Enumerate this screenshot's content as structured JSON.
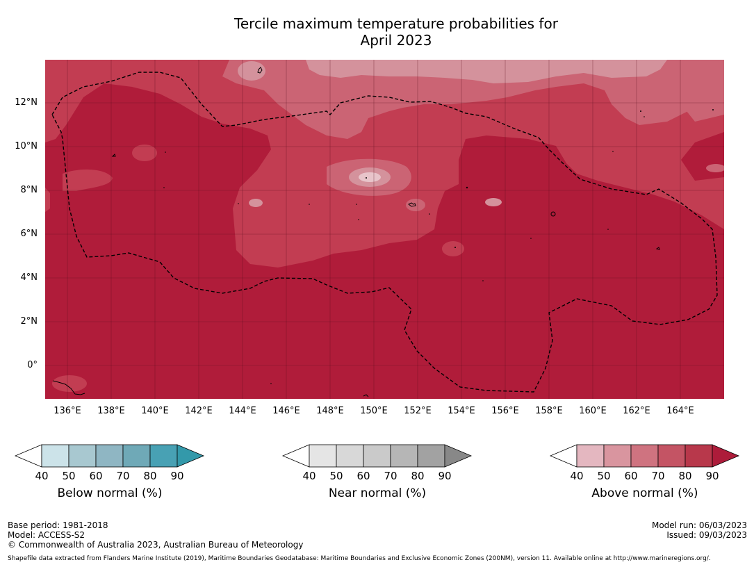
{
  "title_line1": "Tercile maximum temperature probabilities for",
  "title_line2": "April 2023",
  "lat_labels": [
    "12°N",
    "10°N",
    "8°N",
    "6°N",
    "4°N",
    "2°N",
    "0°"
  ],
  "lon_labels": [
    "136°E",
    "138°E",
    "140°E",
    "142°E",
    "144°E",
    "146°E",
    "148°E",
    "150°E",
    "152°E",
    "154°E",
    "156°E",
    "158°E",
    "160°E",
    "162°E",
    "164°E"
  ],
  "colorbars": [
    {
      "title": "Below normal (%)",
      "ticks": [
        "40",
        "50",
        "60",
        "70",
        "80",
        "90"
      ],
      "colors": [
        "#cce3e9",
        "#a8c8d0",
        "#8fb6c3",
        "#6fa9b7",
        "#48a1b4"
      ],
      "extend_color": "#3399aa"
    },
    {
      "title": "Near normal (%)",
      "ticks": [
        "40",
        "50",
        "60",
        "70",
        "80",
        "90"
      ],
      "colors": [
        "#e5e5e5",
        "#d8d8d8",
        "#cacaca",
        "#b6b6b6",
        "#a2a2a2"
      ],
      "extend_color": "#888888"
    },
    {
      "title": "Above normal (%)",
      "ticks": [
        "40",
        "50",
        "60",
        "70",
        "80",
        "90"
      ],
      "colors": [
        "#e4b7c0",
        "#d9959f",
        "#cf7380",
        "#c45464",
        "#b8384b"
      ],
      "extend_color": "#ad1c3a"
    }
  ],
  "footer": {
    "base_period": "Base period: 1981-2018",
    "model": "Model: ACCESS-S2",
    "copyright": "© Commonwealth of Australia 2023, Australian Bureau of Meteorology",
    "model_run": "Model run: 06/03/2023",
    "issued": "Issued: 09/03/2023",
    "shapefile": "Shapefile data extracted from Flanders Marine Institute (2019), Maritime Boundaries Geodatabase: Maritime Boundaries and Exclusive Economic Zones (200NM), version 11. Available online at http://www.marineregions.org/."
  },
  "colors": {
    "ocean_base": "#b01c3a",
    "band_70": "#c23d52",
    "band_60": "#cb6474",
    "band_50": "#d4929c",
    "band_40": "#e8c4ca"
  }
}
